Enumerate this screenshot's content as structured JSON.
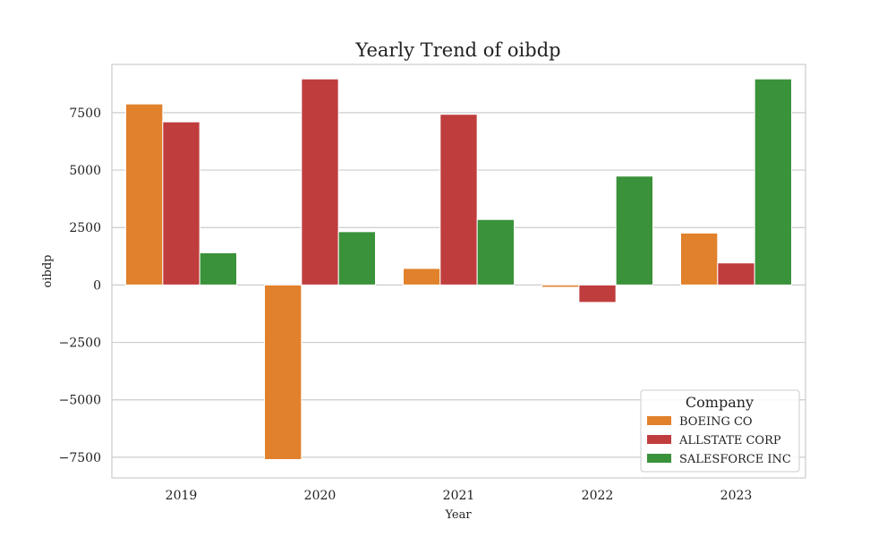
{
  "chart_data": {
    "type": "bar",
    "title": "Yearly Trend of oibdp",
    "xlabel": "Year",
    "ylabel": "oibdp",
    "categories": [
      "2019",
      "2020",
      "2021",
      "2022",
      "2023"
    ],
    "series": [
      {
        "name": "BOEING CO",
        "color": "#e1812c",
        "values": [
          7880,
          -7600,
          720,
          -100,
          2260
        ]
      },
      {
        "name": "ALLSTATE CORP",
        "color": "#c03d3e",
        "values": [
          7100,
          8970,
          7430,
          -760,
          960
        ]
      },
      {
        "name": "SALESFORCE INC",
        "color": "#3a923a",
        "values": [
          1400,
          2320,
          2850,
          4740,
          8970
        ]
      }
    ],
    "yticks": [
      -7500,
      -5000,
      -2500,
      0,
      2500,
      5000,
      7500
    ],
    "ylim": [
      -8400,
      9600
    ],
    "grid": true,
    "legend": {
      "title": "Company",
      "placement": "lower-right"
    }
  }
}
